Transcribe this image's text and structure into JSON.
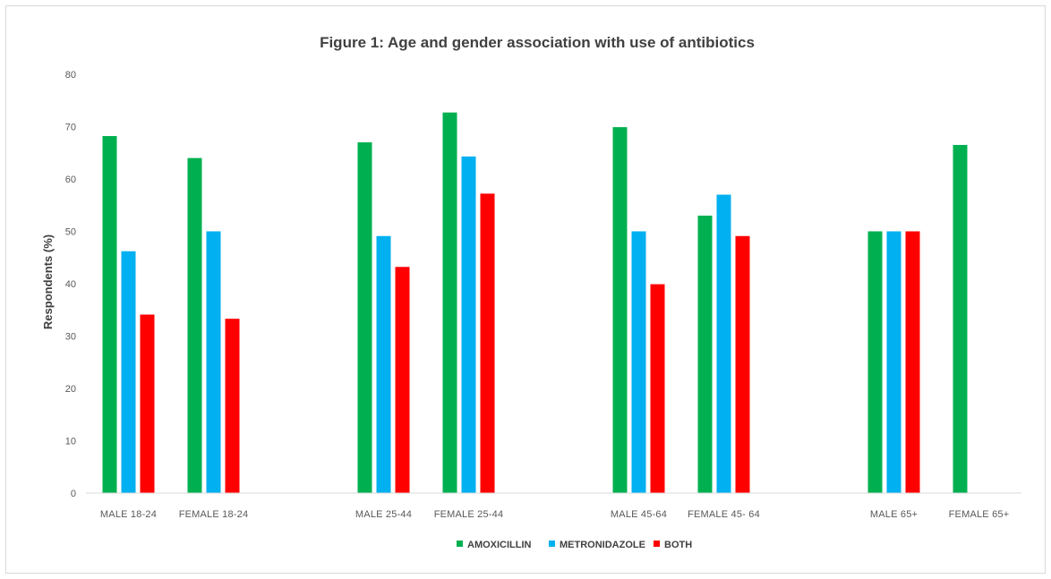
{
  "chart_data": {
    "type": "bar",
    "title": "Figure 1: Age and gender association with use of antibiotics",
    "xlabel": "",
    "ylabel": "Respondents (%)",
    "ylim": [
      0,
      80
    ],
    "yticks": [
      0,
      10,
      20,
      30,
      40,
      50,
      60,
      70,
      80
    ],
    "grid": false,
    "legend_position": "bottom",
    "categories": [
      "MALE 18-24",
      "FEMALE 18-24",
      "",
      "MALE 25-44",
      "FEMALE 25-44",
      "",
      "MALE 45-64",
      "FEMALE 45- 64",
      "",
      "MALE 65+",
      "FEMALE 65+"
    ],
    "series": [
      {
        "name": "AMOXICILLIN",
        "color": "#00b050",
        "values": [
          68.2,
          64.0,
          null,
          67.0,
          72.7,
          null,
          69.9,
          53.0,
          null,
          50.0,
          66.5
        ]
      },
      {
        "name": "METRONIDAZOLE",
        "color": "#00b0f0",
        "values": [
          46.2,
          50.0,
          null,
          49.1,
          64.3,
          null,
          50.0,
          57.0,
          null,
          50.0,
          null
        ]
      },
      {
        "name": "BOTH",
        "color": "#ff0000",
        "values": [
          34.1,
          33.3,
          null,
          43.2,
          57.2,
          null,
          39.9,
          49.1,
          null,
          50.0,
          null
        ]
      }
    ]
  }
}
